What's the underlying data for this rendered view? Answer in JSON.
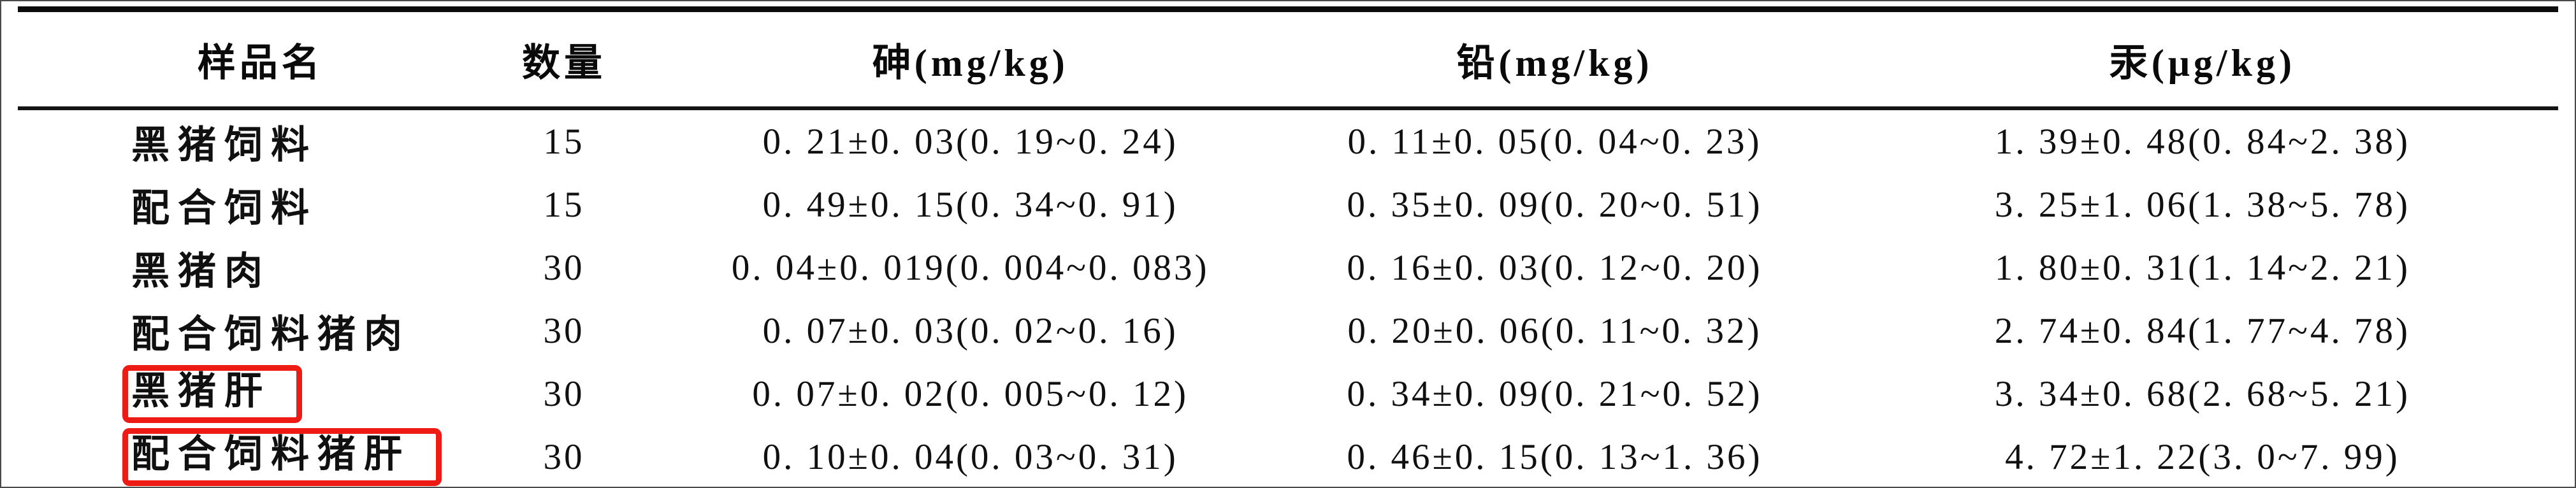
{
  "table": {
    "headers": [
      "样品名",
      "数量",
      "砷(mg/kg)",
      "铅(mg/kg)",
      "汞(μg/kg)"
    ],
    "rows": [
      {
        "name": "黑猪饲料",
        "count": "15",
        "arsenic": "0. 21±0. 03(0. 19~0. 24)",
        "lead": "0. 11±0. 05(0. 04~0. 23)",
        "mercury": "1. 39±0. 48(0. 84~2. 38)",
        "highlighted": false
      },
      {
        "name": "配合饲料",
        "count": "15",
        "arsenic": "0. 49±0. 15(0. 34~0. 91)",
        "lead": "0. 35±0. 09(0. 20~0. 51)",
        "mercury": "3. 25±1. 06(1. 38~5. 78)",
        "highlighted": false
      },
      {
        "name": "黑猪肉",
        "count": "30",
        "arsenic": "0. 04±0. 019(0. 004~0. 083)",
        "lead": "0. 16±0. 03(0. 12~0. 20)",
        "mercury": "1. 80±0. 31(1. 14~2. 21)",
        "highlighted": false
      },
      {
        "name": "配合饲料猪肉",
        "count": "30",
        "arsenic": "0. 07±0. 03(0. 02~0. 16)",
        "lead": "0. 20±0. 06(0. 11~0. 32)",
        "mercury": "2. 74±0. 84(1. 77~4. 78)",
        "highlighted": false
      },
      {
        "name": "黑猪肝",
        "count": "30",
        "arsenic": "0. 07±0. 02(0. 005~0. 12)",
        "lead": "0. 34±0. 09(0. 21~0. 52)",
        "mercury": "3. 34±0. 68(2. 68~5. 21)",
        "highlighted": true
      },
      {
        "name": "配合饲料猪肝",
        "count": "30",
        "arsenic": "0. 10±0. 04(0. 03~0. 31)",
        "lead": "0. 46±0. 15(0. 13~1. 36)",
        "mercury": "4. 72±1. 22(3. 0~7. 99)",
        "highlighted": true
      }
    ]
  },
  "annotation": {
    "box_color": "#ee1b15",
    "highlighted_samples": [
      "黑猪肝",
      "配合饲料猪肝"
    ]
  }
}
